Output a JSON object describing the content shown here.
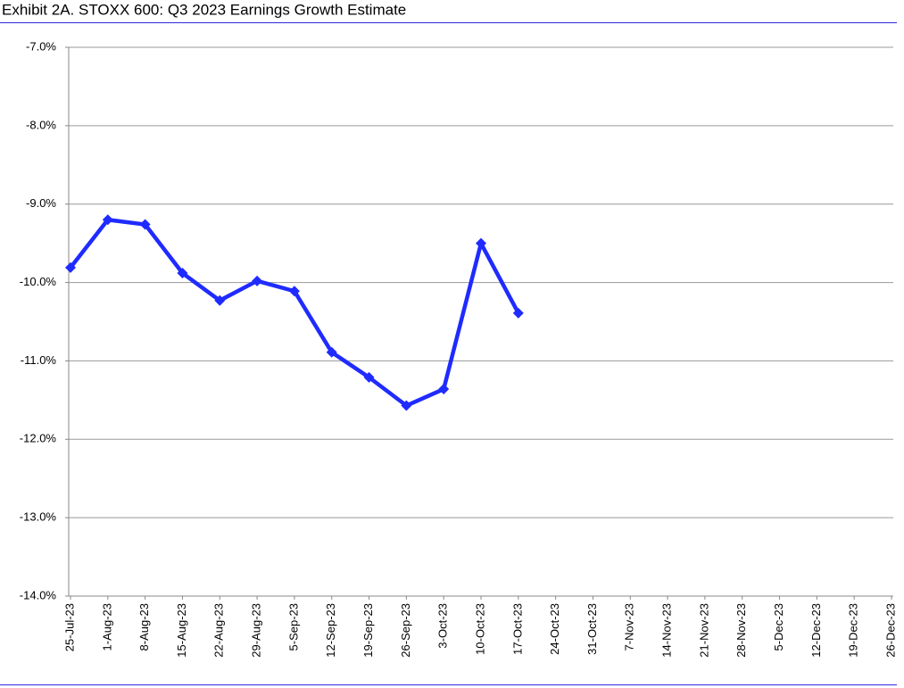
{
  "chart_data": {
    "type": "line",
    "title": "Exhibit 2A.  STOXX 600: Q3 2023 Earnings Growth Estimate",
    "categories": [
      "25-Jul-23",
      "1-Aug-23",
      "8-Aug-23",
      "15-Aug-23",
      "22-Aug-23",
      "29-Aug-23",
      "5-Sep-23",
      "12-Sep-23",
      "19-Sep-23",
      "26-Sep-23",
      "3-Oct-23",
      "10-Oct-23",
      "17-Oct-23",
      "24-Oct-23",
      "31-Oct-23",
      "7-Nov-23",
      "14-Nov-23",
      "21-Nov-23",
      "28-Nov-23",
      "5-Dec-23",
      "12-Dec-23",
      "19-Dec-23",
      "26-Dec-23"
    ],
    "values": [
      -9.81,
      -9.2,
      -9.26,
      -9.88,
      -10.23,
      -9.98,
      -10.11,
      -10.89,
      -11.21,
      -11.57,
      -11.36,
      -9.5,
      -10.39,
      null,
      null,
      null,
      null,
      null,
      null,
      null,
      null,
      null,
      null
    ],
    "color": "#1f2bff",
    "ylim": [
      -14,
      -7
    ],
    "yticks": [
      {
        "value": -14,
        "label": "-14.0%"
      },
      {
        "value": -13,
        "label": "-13.0%"
      },
      {
        "value": -12,
        "label": "-12.0%"
      },
      {
        "value": -11,
        "label": "-11.0%"
      },
      {
        "value": -10,
        "label": "-10.0%"
      },
      {
        "value": -9,
        "label": "-9.0%"
      },
      {
        "value": -8,
        "label": "-8.0%"
      },
      {
        "value": -7,
        "label": "-7.0%"
      }
    ],
    "grid": true
  }
}
